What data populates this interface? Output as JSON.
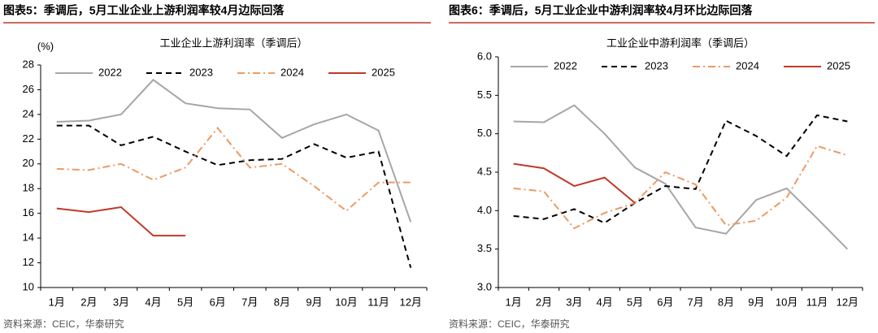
{
  "chart_data": [
    {
      "type": "line",
      "title": "图表5：季调后，5月工业企业上游利润率较4月边际回落",
      "subtitle": "工业企业上游利润率（季调后）",
      "y_unit": "(%)",
      "source": "资料来源：CEIC，华泰研究",
      "categories": [
        "1月",
        "2月",
        "3月",
        "4月",
        "5月",
        "6月",
        "7月",
        "8月",
        "9月",
        "10月",
        "11月",
        "12月"
      ],
      "ylim": [
        10,
        28
      ],
      "yticks": [
        10,
        12,
        14,
        16,
        18,
        20,
        22,
        24,
        26,
        28
      ],
      "grid": false,
      "series": [
        {
          "name": "2022",
          "color": "#a6a6a6",
          "dash": "solid",
          "values": [
            23.4,
            23.5,
            24.0,
            26.8,
            24.9,
            24.5,
            24.4,
            22.1,
            23.2,
            24.0,
            22.7,
            15.3
          ]
        },
        {
          "name": "2023",
          "color": "#000000",
          "dash": "dashed",
          "values": [
            23.1,
            23.1,
            21.5,
            22.2,
            21.0,
            19.9,
            20.3,
            20.4,
            21.6,
            20.5,
            21.0,
            11.6
          ]
        },
        {
          "name": "2024",
          "color": "#ed9a63",
          "dash": "dashdot",
          "values": [
            19.6,
            19.5,
            20.0,
            18.7,
            19.7,
            22.9,
            19.7,
            20.0,
            18.2,
            16.2,
            18.5,
            18.5
          ]
        },
        {
          "name": "2025",
          "color": "#c0392b",
          "dash": "solid",
          "values": [
            16.4,
            16.1,
            16.5,
            14.2,
            14.2,
            null,
            null,
            null,
            null,
            null,
            null,
            null
          ]
        }
      ]
    },
    {
      "type": "line",
      "title": "图表6：季调后，5月工业企业中游利润率较4月环比边际回落",
      "subtitle": "工业企业中游利润率（季调后）",
      "source": "资料来源：CEIC，华泰研究",
      "categories": [
        "1月",
        "2月",
        "3月",
        "4月",
        "5月",
        "6月",
        "7月",
        "8月",
        "9月",
        "10月",
        "11月",
        "12月"
      ],
      "ylim": [
        3.0,
        6.0
      ],
      "yticks": [
        {
          "value": 3,
          "label": "3.0"
        },
        3.5,
        {
          "value": 4,
          "label": "4.0"
        },
        4.5,
        {
          "value": 5,
          "label": "5.0"
        },
        5.5,
        {
          "value": 6,
          "label": "6.0"
        }
      ],
      "grid": false,
      "series": [
        {
          "name": "2022",
          "color": "#a6a6a6",
          "dash": "solid",
          "values": [
            5.16,
            5.15,
            5.37,
            5.0,
            4.56,
            4.35,
            3.78,
            3.7,
            4.14,
            4.29,
            3.9,
            3.5
          ]
        },
        {
          "name": "2023",
          "color": "#000000",
          "dash": "dashed",
          "values": [
            3.93,
            3.89,
            4.02,
            3.84,
            4.1,
            4.32,
            4.28,
            5.17,
            4.97,
            4.71,
            5.24,
            5.16
          ]
        },
        {
          "name": "2024",
          "color": "#ed9a63",
          "dash": "dashdot",
          "values": [
            4.29,
            4.25,
            3.77,
            3.97,
            4.1,
            4.5,
            4.34,
            3.81,
            3.87,
            4.17,
            4.84,
            4.72
          ]
        },
        {
          "name": "2025",
          "color": "#c0392b",
          "dash": "solid",
          "values": [
            4.61,
            4.55,
            4.32,
            4.43,
            4.1,
            null,
            null,
            null,
            null,
            null,
            null,
            null
          ]
        }
      ]
    }
  ]
}
